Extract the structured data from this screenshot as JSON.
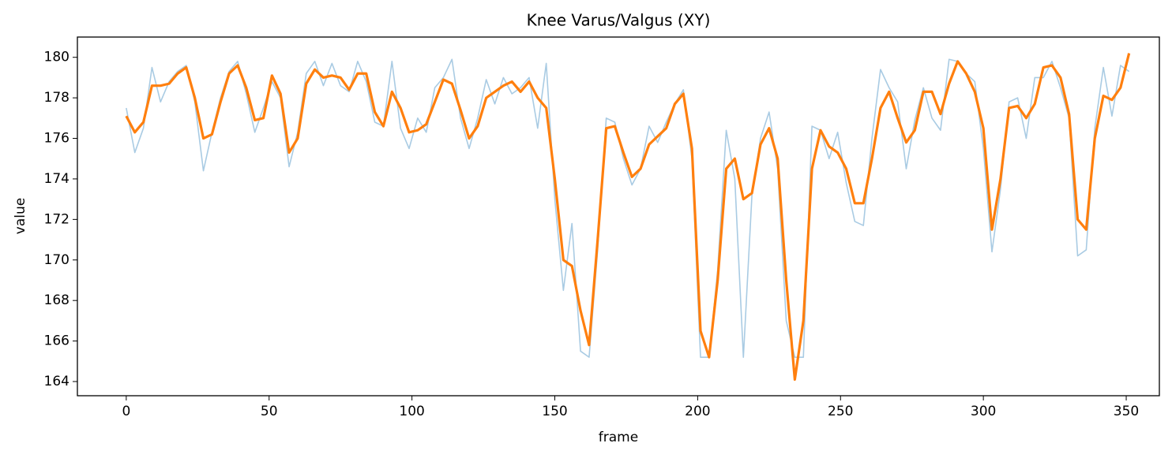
{
  "chart_data": {
    "type": "line",
    "title": "Knee Varus/Valgus (XY)",
    "x_label": "frame",
    "y_label": "value",
    "x": [
      0,
      3,
      6,
      9,
      12,
      15,
      18,
      21,
      24,
      27,
      30,
      33,
      36,
      39,
      42,
      45,
      48,
      51,
      54,
      57,
      60,
      63,
      66,
      69,
      72,
      75,
      78,
      81,
      84,
      87,
      90,
      93,
      96,
      99,
      102,
      105,
      108,
      111,
      114,
      117,
      120,
      123,
      126,
      129,
      132,
      135,
      138,
      141,
      144,
      147,
      150,
      153,
      156,
      159,
      162,
      165,
      168,
      171,
      174,
      177,
      180,
      183,
      186,
      189,
      192,
      195,
      198,
      201,
      204,
      207,
      210,
      213,
      216,
      219,
      222,
      225,
      228,
      231,
      234,
      237,
      240,
      243,
      246,
      249,
      252,
      255,
      258,
      261,
      264,
      267,
      270,
      273,
      276,
      279,
      282,
      285,
      288,
      291,
      294,
      297,
      300,
      303,
      306,
      309,
      312,
      315,
      318,
      321,
      324,
      327,
      330,
      333,
      336,
      339,
      342,
      345,
      348,
      351
    ],
    "series": [
      {
        "color": "#a9cbe3",
        "values": [
          177.5,
          175.3,
          176.5,
          179.5,
          177.8,
          178.8,
          179.3,
          179.6,
          177.8,
          174.4,
          176.3,
          178.0,
          179.3,
          179.8,
          178.2,
          176.3,
          177.5,
          178.8,
          178.0,
          174.6,
          176.3,
          179.2,
          179.8,
          178.6,
          179.7,
          178.6,
          178.3,
          179.8,
          178.8,
          176.8,
          176.6,
          179.8,
          176.5,
          175.5,
          177.0,
          176.3,
          178.5,
          179.0,
          179.9,
          177.0,
          175.5,
          177.0,
          178.9,
          177.7,
          179.0,
          178.2,
          178.5,
          179.0,
          176.5,
          179.7,
          173.0,
          168.5,
          171.8,
          165.5,
          165.2,
          170.5,
          177.0,
          176.8,
          175.0,
          173.7,
          174.5,
          176.6,
          175.8,
          176.8,
          177.7,
          178.4,
          175.0,
          165.2,
          165.2,
          169.5,
          176.4,
          174.0,
          165.2,
          173.2,
          176.0,
          177.3,
          174.5,
          167.0,
          165.2,
          165.2,
          176.6,
          176.4,
          175.0,
          176.3,
          173.8,
          171.9,
          171.7,
          176.0,
          179.4,
          178.5,
          177.8,
          174.5,
          176.9,
          178.5,
          177.0,
          176.4,
          179.9,
          179.8,
          179.2,
          178.8,
          175.5,
          170.4,
          173.5,
          177.8,
          178.0,
          176.0,
          179.0,
          179.0,
          179.8,
          178.5,
          177.0,
          170.2,
          170.5,
          176.5,
          179.5,
          177.1,
          179.6,
          179.3
        ]
      },
      {
        "color": "#ff7f0e",
        "values": [
          177.1,
          176.3,
          176.8,
          178.6,
          178.6,
          178.7,
          179.2,
          179.5,
          178.0,
          176.0,
          176.2,
          177.8,
          179.2,
          179.6,
          178.5,
          176.9,
          177.0,
          179.1,
          178.2,
          175.3,
          176.0,
          178.7,
          179.4,
          179.0,
          179.1,
          179.0,
          178.4,
          179.2,
          179.2,
          177.3,
          176.6,
          178.3,
          177.5,
          176.3,
          176.4,
          176.7,
          177.8,
          178.9,
          178.7,
          177.4,
          176.0,
          176.6,
          178.0,
          178.3,
          178.6,
          178.8,
          178.3,
          178.8,
          178.0,
          177.5,
          174.0,
          170.0,
          169.7,
          167.5,
          165.8,
          171.0,
          176.5,
          176.6,
          175.3,
          174.1,
          174.5,
          175.7,
          176.1,
          176.5,
          177.7,
          178.2,
          175.5,
          166.5,
          165.2,
          169.0,
          174.5,
          175.0,
          173.0,
          173.3,
          175.7,
          176.5,
          175.0,
          169.0,
          164.1,
          167.0,
          174.5,
          176.4,
          175.6,
          175.3,
          174.5,
          172.8,
          172.8,
          175.0,
          177.5,
          178.3,
          177.0,
          175.8,
          176.4,
          178.3,
          178.3,
          177.2,
          178.7,
          179.8,
          179.2,
          178.3,
          176.5,
          171.5,
          174.0,
          177.5,
          177.6,
          177.0,
          177.7,
          179.5,
          179.6,
          179.0,
          177.2,
          172.0,
          171.5,
          176.0,
          178.1,
          177.9,
          178.5,
          180.2
        ]
      }
    ],
    "xlim": [
      -17.1,
      361.6
    ],
    "ylim": [
      163.3,
      181.0
    ],
    "xticks": [
      0,
      50,
      100,
      150,
      200,
      250,
      300,
      350
    ],
    "yticks": [
      164,
      166,
      168,
      170,
      172,
      174,
      176,
      178,
      180
    ]
  }
}
